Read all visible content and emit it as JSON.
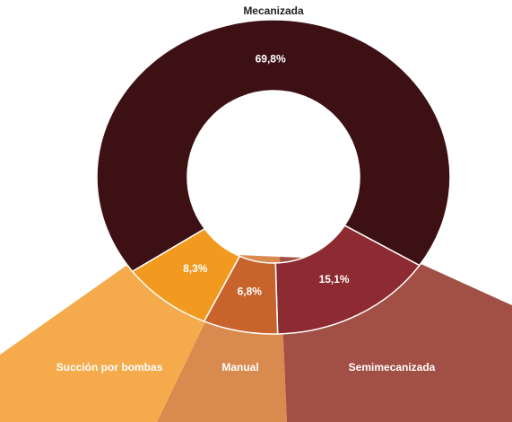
{
  "chart_data": {
    "type": "pie",
    "donut": true,
    "categories": [
      "Mecanizada",
      "Semimecanizada",
      "Manual",
      "Succión por bombas"
    ],
    "values": [
      69.8,
      15.1,
      6.8,
      8.3
    ],
    "value_labels": [
      "69,8%",
      "15,1%",
      "6,8%",
      "8,3%"
    ],
    "colors": [
      "#3d1014",
      "#8e2a31",
      "#c8632c",
      "#f29a1f"
    ]
  }
}
